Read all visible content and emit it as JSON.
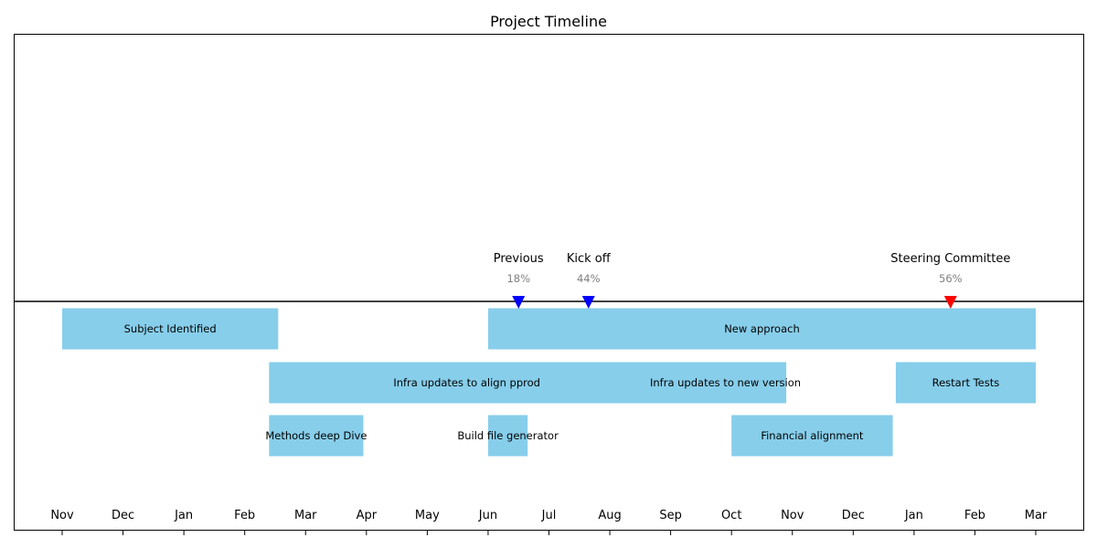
{
  "chart_data": {
    "type": "gantt-timeline",
    "title": "Project Timeline",
    "x_ticks": [
      "Nov",
      "Dec",
      "Jan",
      "Feb",
      "Mar",
      "Apr",
      "May",
      "Jun",
      "Jul",
      "Aug",
      "Sep",
      "Oct",
      "Nov",
      "Dec",
      "Jan",
      "Feb",
      "Mar"
    ],
    "x_range_months": [
      0,
      17
    ],
    "tasks": [
      {
        "label": "Subject Identified",
        "start": 0.0,
        "end": 3.55,
        "row": 0
      },
      {
        "label": "New approach",
        "start": 7.0,
        "end": 16.0,
        "row": 0
      },
      {
        "label": "Infra updates to align pprod",
        "start": 3.4,
        "end": 9.9,
        "row": 1
      },
      {
        "label": "Infra updates to new version",
        "start": 9.9,
        "end": 11.9,
        "row": 1
      },
      {
        "label": "Restart Tests",
        "start": 13.7,
        "end": 16.0,
        "row": 1
      },
      {
        "label": "Methods deep Dive",
        "start": 3.4,
        "end": 4.95,
        "row": 2
      },
      {
        "label": "Build file generator",
        "start": 7.0,
        "end": 7.65,
        "row": 2
      },
      {
        "label": "Financial alignment",
        "start": 11.0,
        "end": 13.65,
        "row": 2
      }
    ],
    "milestones": [
      {
        "label": "Previous",
        "percent": "18%",
        "date": 7.5,
        "color": "#0000ff"
      },
      {
        "label": "Kick off",
        "percent": "44%",
        "date": 8.65,
        "color": "#0000ff"
      },
      {
        "label": "Steering Committee",
        "percent": "56%",
        "date": 14.6,
        "color": "#ff0000"
      }
    ],
    "bar_color": "#87ceeb",
    "grid": false
  }
}
